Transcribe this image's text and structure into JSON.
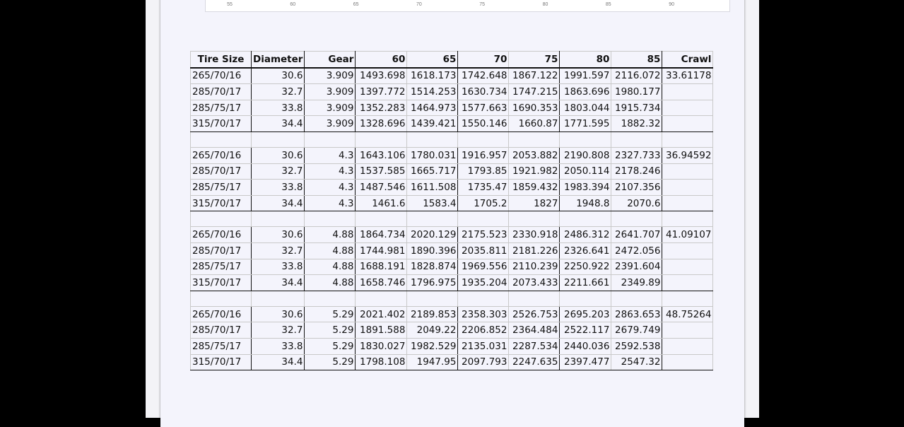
{
  "chart_ticks": [
    "55",
    "60",
    "65",
    "70",
    "75",
    "80",
    "85",
    "90"
  ],
  "headers": [
    "Tire Size",
    "Diameter",
    "Gear",
    "60",
    "65",
    "70",
    "75",
    "80",
    "85",
    "Crawl"
  ],
  "groups": [
    {
      "rows": [
        [
          "265/70/16",
          "30.6",
          "3.909",
          "1493.698",
          "1618.173",
          "1742.648",
          "1867.122",
          "1991.597",
          "2116.072",
          "33.61178"
        ],
        [
          "285/70/17",
          "32.7",
          "3.909",
          "1397.772",
          "1514.253",
          "1630.734",
          "1747.215",
          "1863.696",
          "1980.177",
          ""
        ],
        [
          "285/75/17",
          "33.8",
          "3.909",
          "1352.283",
          "1464.973",
          "1577.663",
          "1690.353",
          "1803.044",
          "1915.734",
          ""
        ],
        [
          "315/70/17",
          "34.4",
          "3.909",
          "1328.696",
          "1439.421",
          "1550.146",
          "1660.87",
          "1771.595",
          "1882.32",
          ""
        ]
      ]
    },
    {
      "rows": [
        [
          "265/70/16",
          "30.6",
          "4.3",
          "1643.106",
          "1780.031",
          "1916.957",
          "2053.882",
          "2190.808",
          "2327.733",
          "36.94592"
        ],
        [
          "285/70/17",
          "32.7",
          "4.3",
          "1537.585",
          "1665.717",
          "1793.85",
          "1921.982",
          "2050.114",
          "2178.246",
          ""
        ],
        [
          "285/75/17",
          "33.8",
          "4.3",
          "1487.546",
          "1611.508",
          "1735.47",
          "1859.432",
          "1983.394",
          "2107.356",
          ""
        ],
        [
          "315/70/17",
          "34.4",
          "4.3",
          "1461.6",
          "1583.4",
          "1705.2",
          "1827",
          "1948.8",
          "2070.6",
          ""
        ]
      ]
    },
    {
      "rows": [
        [
          "265/70/16",
          "30.6",
          "4.88",
          "1864.734",
          "2020.129",
          "2175.523",
          "2330.918",
          "2486.312",
          "2641.707",
          "41.09107"
        ],
        [
          "285/70/17",
          "32.7",
          "4.88",
          "1744.981",
          "1890.396",
          "2035.811",
          "2181.226",
          "2326.641",
          "2472.056",
          ""
        ],
        [
          "285/75/17",
          "33.8",
          "4.88",
          "1688.191",
          "1828.874",
          "1969.556",
          "2110.239",
          "2250.922",
          "2391.604",
          ""
        ],
        [
          "315/70/17",
          "34.4",
          "4.88",
          "1658.746",
          "1796.975",
          "1935.204",
          "2073.433",
          "2211.661",
          "2349.89",
          ""
        ]
      ]
    },
    {
      "rows": [
        [
          "265/70/16",
          "30.6",
          "5.29",
          "2021.402",
          "2189.853",
          "2358.303",
          "2526.753",
          "2695.203",
          "2863.653",
          "48.75264"
        ],
        [
          "285/70/17",
          "32.7",
          "5.29",
          "1891.588",
          "2049.22",
          "2206.852",
          "2364.484",
          "2522.117",
          "2679.749",
          ""
        ],
        [
          "285/75/17",
          "33.8",
          "5.29",
          "1830.027",
          "1982.529",
          "2135.031",
          "2287.534",
          "2440.036",
          "2592.538",
          ""
        ],
        [
          "315/70/17",
          "34.4",
          "5.29",
          "1798.108",
          "1947.95",
          "2097.793",
          "2247.635",
          "2397.477",
          "2547.32",
          ""
        ]
      ]
    }
  ]
}
